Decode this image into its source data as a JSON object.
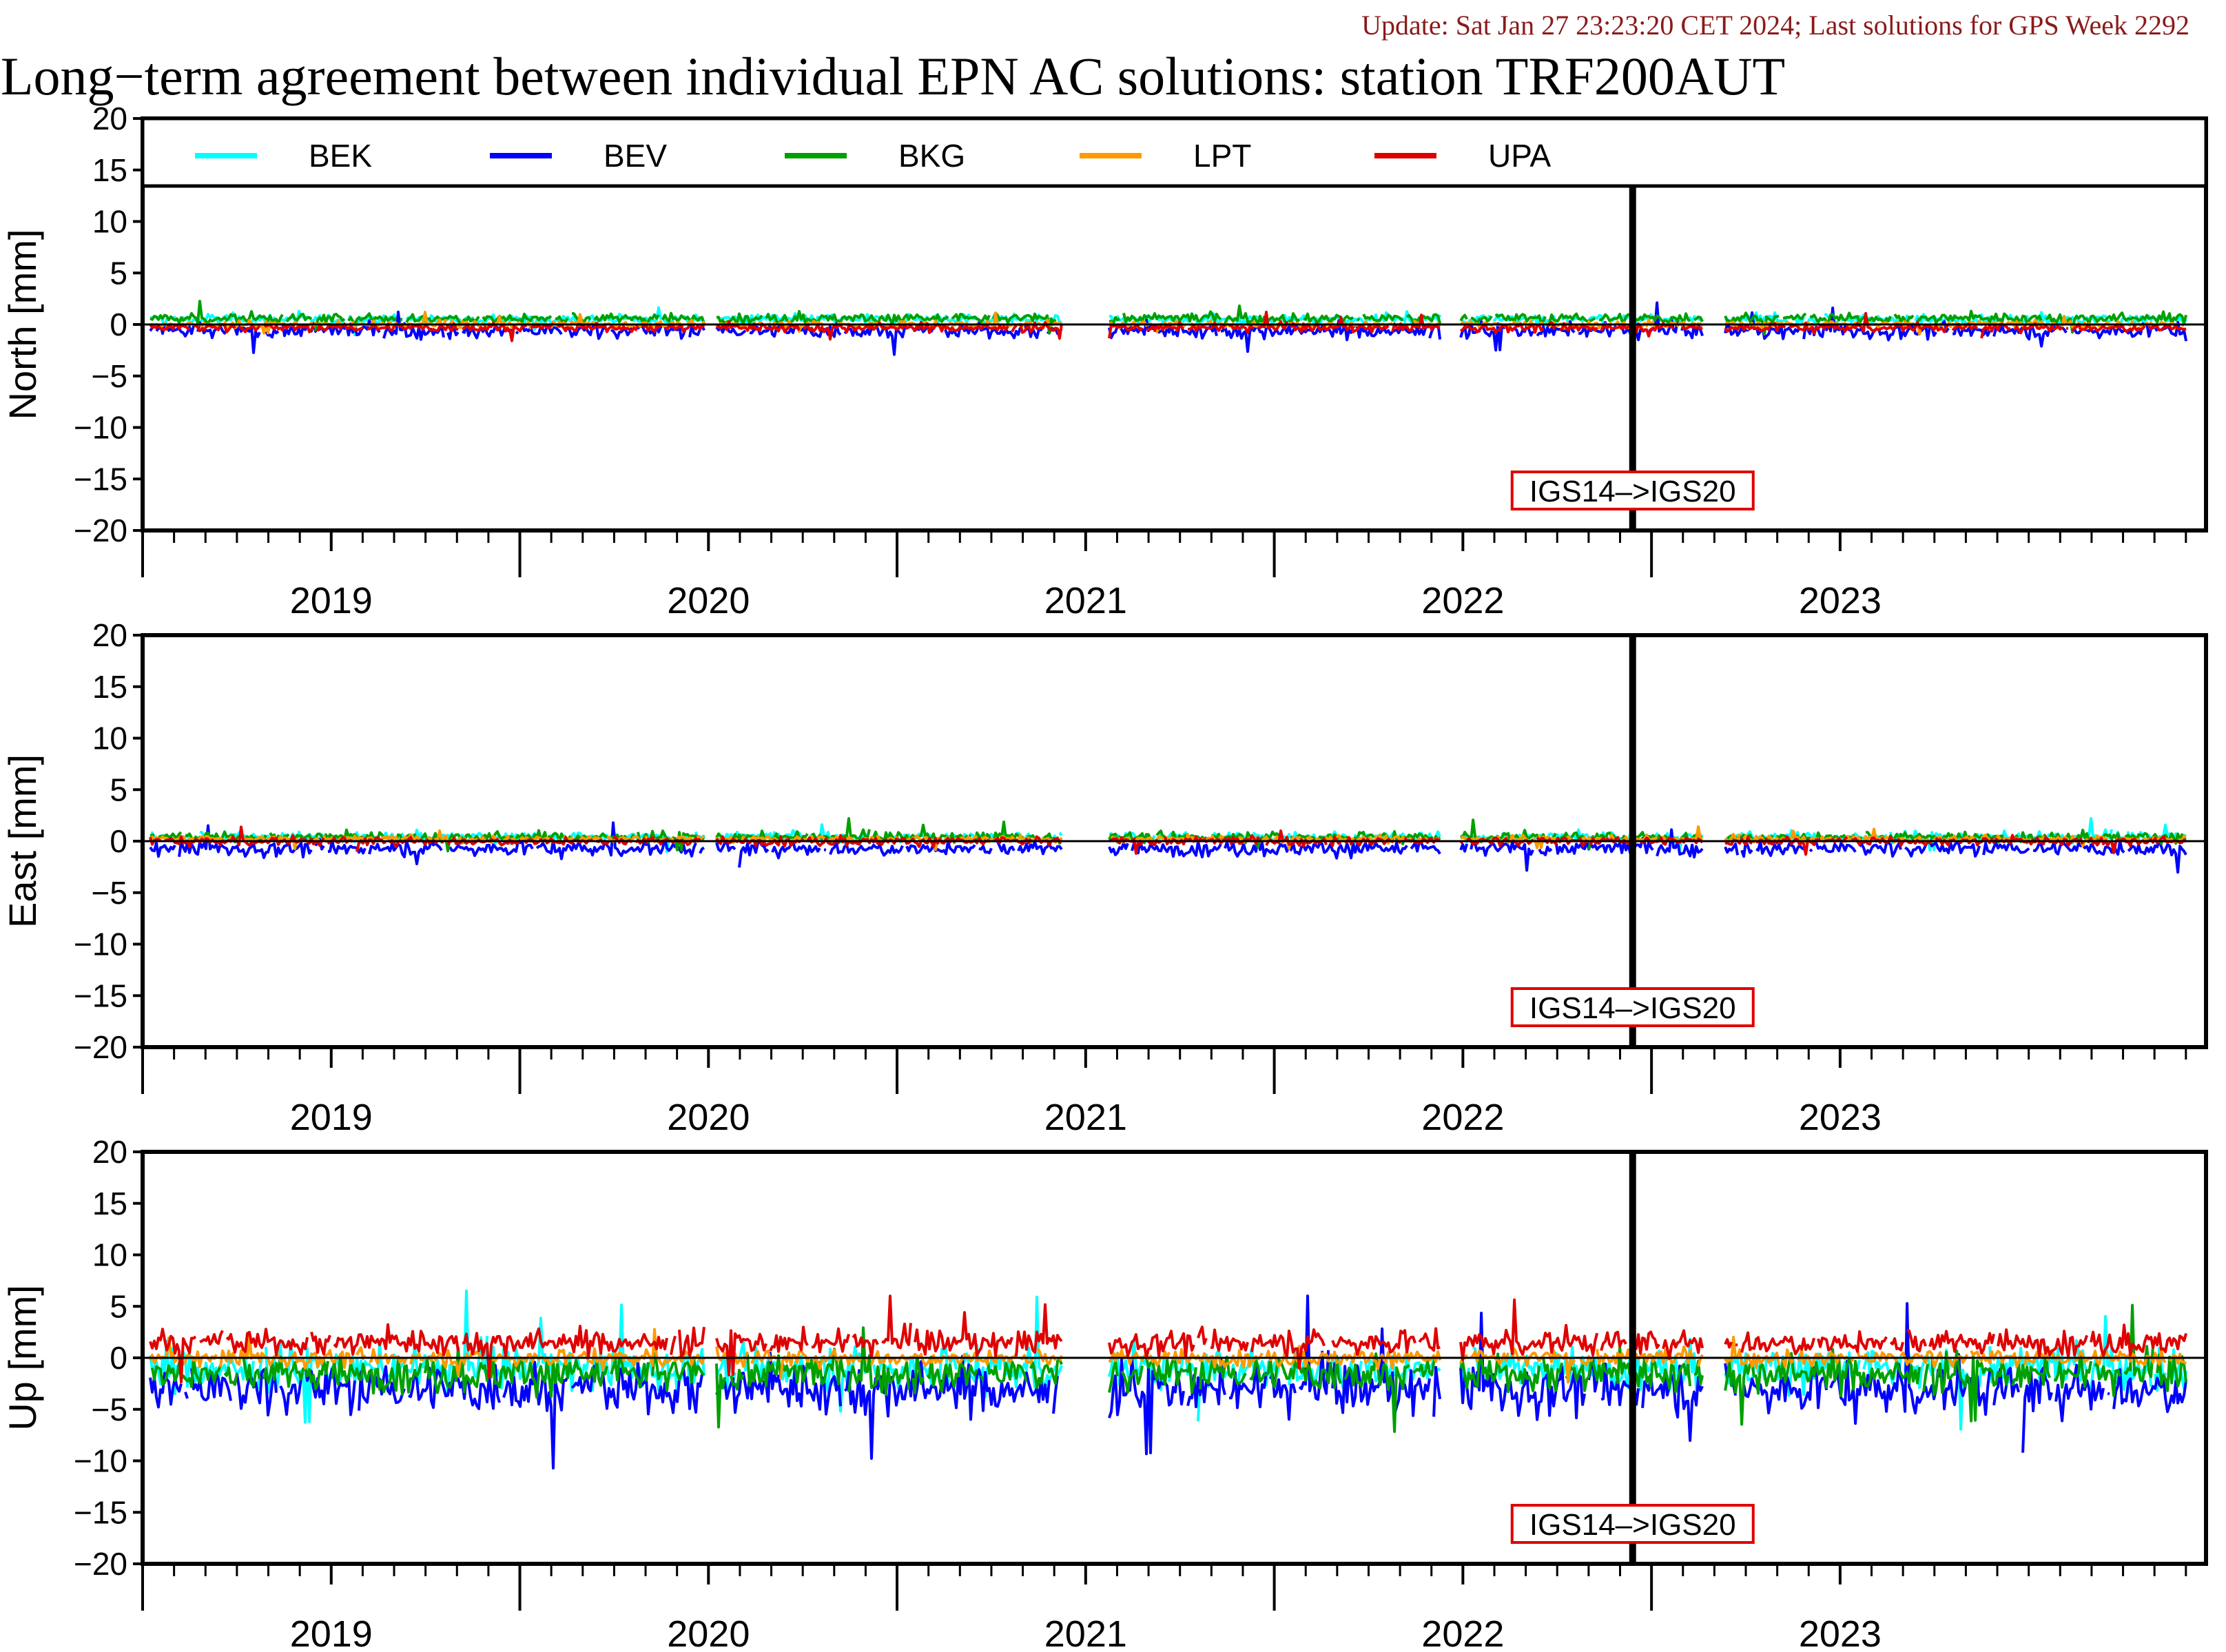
{
  "header": {
    "update": "Update: Sat Jan 27 23:23:20 CET 2024; Last solutions for GPS Week 2292",
    "title": "Long−term agreement between individual EPN AC solutions: station TRF200AUT"
  },
  "colors": {
    "BEK": "#00ffff",
    "BEV": "#0000ff",
    "BKG": "#00a000",
    "LPT": "#ff9900",
    "UPA": "#e00000",
    "frame": "#000000",
    "update_text": "#8b1a1a",
    "marker_box": "#e00000"
  },
  "chart_data": [
    {
      "type": "line",
      "panel": "north",
      "ylabel": "North [mm]",
      "ylim": [
        -20,
        20
      ],
      "yticks": [
        "20",
        "15",
        "10",
        "5",
        "0",
        "−5",
        "−10",
        "−15",
        "−20"
      ],
      "xlim": [
        2018.5,
        2023.97
      ],
      "year_labels": [
        "2019",
        "2020",
        "2021",
        "2022",
        "2023"
      ],
      "legend": {
        "position": "top",
        "entries": [
          "BEK",
          "BEV",
          "BKG",
          "LPT",
          "UPA"
        ]
      },
      "marker": {
        "x": 2022.45,
        "label": "IGS14–>IGS20"
      },
      "series": [
        {
          "name": "BEK",
          "mean": 0.5,
          "noise": 0.6
        },
        {
          "name": "BEV",
          "mean": -0.6,
          "noise": 0.9
        },
        {
          "name": "BKG",
          "mean": 0.6,
          "noise": 0.6
        },
        {
          "name": "LPT",
          "mean": 0.0,
          "noise": 0.4
        },
        {
          "name": "UPA",
          "mean": -0.3,
          "noise": 0.5
        }
      ]
    },
    {
      "type": "line",
      "panel": "east",
      "ylabel": "East [mm]",
      "ylim": [
        -20,
        20
      ],
      "yticks": [
        "20",
        "15",
        "10",
        "5",
        "0",
        "−5",
        "−10",
        "−15",
        "−20"
      ],
      "xlim": [
        2018.5,
        2023.97
      ],
      "year_labels": [
        "2019",
        "2020",
        "2021",
        "2022",
        "2023"
      ],
      "marker": {
        "x": 2022.45,
        "label": "IGS14–>IGS20"
      },
      "series": [
        {
          "name": "BEK",
          "mean": 0.4,
          "noise": 0.6
        },
        {
          "name": "BEV",
          "mean": -0.7,
          "noise": 0.9
        },
        {
          "name": "BKG",
          "mean": 0.4,
          "noise": 0.6
        },
        {
          "name": "LPT",
          "mean": 0.2,
          "noise": 0.4
        },
        {
          "name": "UPA",
          "mean": 0.0,
          "noise": 0.5
        }
      ]
    },
    {
      "type": "line",
      "panel": "up",
      "ylabel": "Up [mm]",
      "ylim": [
        -20,
        20
      ],
      "yticks": [
        "20",
        "15",
        "10",
        "5",
        "0",
        "−5",
        "−10",
        "−15",
        "−20"
      ],
      "xlim": [
        2018.5,
        2023.97
      ],
      "year_labels": [
        "2019",
        "2020",
        "2021",
        "2022",
        "2023"
      ],
      "marker": {
        "x": 2022.45,
        "label": "IGS14–>IGS20"
      },
      "series": [
        {
          "name": "BEK",
          "mean": -1.0,
          "noise": 2.5
        },
        {
          "name": "BEV",
          "mean": -3.0,
          "noise": 3.0
        },
        {
          "name": "BKG",
          "mean": -1.5,
          "noise": 2.2
        },
        {
          "name": "LPT",
          "mean": 0.0,
          "noise": 1.0
        },
        {
          "name": "UPA",
          "mean": 1.5,
          "noise": 1.5
        }
      ]
    }
  ],
  "data_gaps": [
    [
      2019.99,
      2020.02
    ],
    [
      2020.94,
      2021.06
    ],
    [
      2021.94,
      2021.99
    ],
    [
      2022.64,
      2022.69
    ]
  ]
}
